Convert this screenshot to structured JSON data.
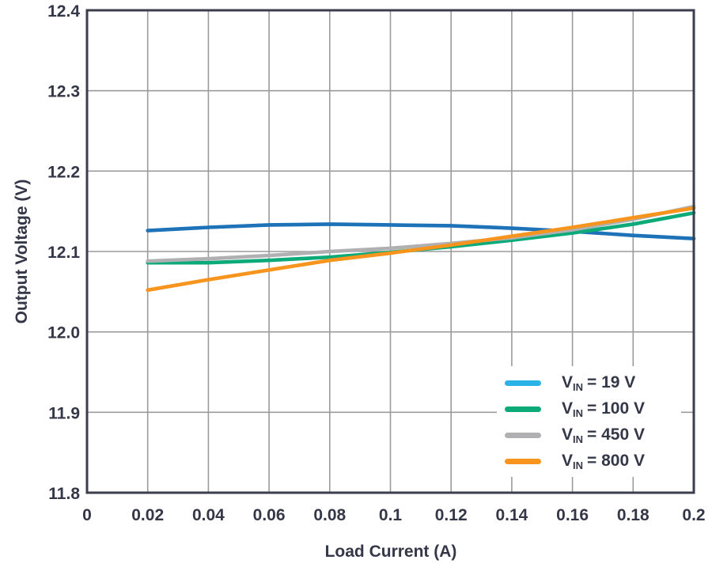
{
  "chart_data": {
    "type": "line",
    "title": "",
    "xlabel": "Load Current (A)",
    "ylabel": "Output Voltage (V)",
    "xlim": [
      0,
      0.2
    ],
    "ylim": [
      11.8,
      12.4
    ],
    "grid": true,
    "legend_position": "lower-right",
    "xticks": [
      0,
      0.02,
      0.04,
      0.06,
      0.08,
      0.1,
      0.12,
      0.14,
      0.16,
      0.18,
      0.2
    ],
    "xtick_labels": [
      "0",
      "0.02",
      "0.04",
      "0.06",
      "0.08",
      "0.1",
      "0.12",
      "0.14",
      "0.16",
      "0.18",
      "0.2"
    ],
    "yticks": [
      11.8,
      11.9,
      12.0,
      12.1,
      12.2,
      12.3,
      12.4
    ],
    "ytick_labels": [
      "11.8",
      "11.9",
      "12.0",
      "12.1",
      "12.2",
      "12.3",
      "12.4"
    ],
    "x": [
      0.02,
      0.04,
      0.06,
      0.08,
      0.1,
      0.12,
      0.14,
      0.16,
      0.18,
      0.2
    ],
    "series": [
      {
        "key": "vin-19v",
        "name": "VIN = 19 V",
        "color": "#1d72b8",
        "values": [
          12.126,
          12.13,
          12.133,
          12.134,
          12.133,
          12.132,
          12.129,
          12.125,
          12.12,
          12.116
        ]
      },
      {
        "key": "vin-100v",
        "name": "VIN = 100 V",
        "color": "#0caa78",
        "values": [
          12.086,
          12.086,
          12.089,
          12.093,
          12.099,
          12.106,
          12.114,
          12.123,
          12.134,
          12.148
        ]
      },
      {
        "key": "vin-450v",
        "name": "VIN = 450 V",
        "color": "#b0b0b2",
        "values": [
          12.088,
          12.091,
          12.095,
          12.1,
          12.104,
          12.11,
          12.117,
          12.127,
          12.14,
          12.156
        ]
      },
      {
        "key": "vin-800v",
        "name": "VIN = 800 V",
        "color": "#f7941e",
        "values": [
          12.052,
          12.065,
          12.077,
          12.089,
          12.098,
          12.108,
          12.119,
          12.13,
          12.142,
          12.154
        ]
      }
    ],
    "colors": {
      "grid": "#9b9b9b",
      "axis_border": "#3b3e4c",
      "text": "#343747"
    }
  },
  "legend": {
    "items": [
      {
        "v": "V",
        "sub": "IN",
        "rest": "= 19 V",
        "color": "#2bb3e8"
      },
      {
        "v": "V",
        "sub": "IN",
        "rest": "= 100 V",
        "color": "#0caa78"
      },
      {
        "v": "V",
        "sub": "IN",
        "rest": "= 450 V",
        "color": "#b0b0b2"
      },
      {
        "v": "V",
        "sub": "IN",
        "rest": "= 800 V",
        "color": "#f7941e"
      }
    ]
  }
}
